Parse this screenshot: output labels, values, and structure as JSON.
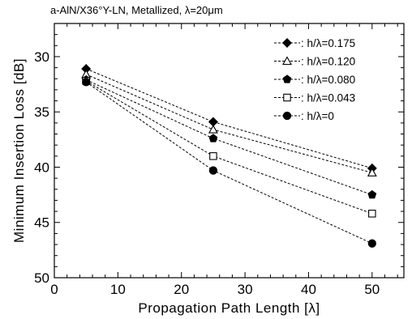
{
  "chart_data": {
    "type": "line",
    "title": "a-AlN/X36°Y-LN,  Metallized,  λ=20μm",
    "xlabel": "Propagation  Path  Length  [λ]",
    "ylabel": "Minimum  Insertion  Loss  [dB]",
    "xlim": [
      0,
      55
    ],
    "ylim": [
      27,
      50
    ],
    "y_inverted": true,
    "xticks": [
      0,
      10,
      20,
      30,
      40,
      50
    ],
    "yticks": [
      30,
      35,
      40,
      45,
      50
    ],
    "grid": false,
    "legend_position": "top-right",
    "line_style": "dashed",
    "line_color": "#000000",
    "series": [
      {
        "name": ":  h/λ=0.175",
        "marker": "diamond-filled",
        "x": [
          5,
          25,
          50
        ],
        "values": [
          31.1,
          35.9,
          40.1
        ]
      },
      {
        "name": ":  h/λ=0.120",
        "marker": "triangle-open",
        "x": [
          5,
          25,
          50
        ],
        "values": [
          31.6,
          36.6,
          40.5
        ]
      },
      {
        "name": ":  h/λ=0.080",
        "marker": "pentagon-filled",
        "x": [
          5,
          25,
          50
        ],
        "values": [
          32.1,
          37.4,
          42.5
        ]
      },
      {
        "name": ":  h/λ=0.043",
        "marker": "square-open",
        "x": [
          5,
          25,
          50
        ],
        "values": [
          32.2,
          39.0,
          44.2
        ]
      },
      {
        "name": ":  h/λ=0",
        "marker": "circle-filled",
        "x": [
          5,
          25,
          50
        ],
        "values": [
          32.3,
          40.3,
          46.9
        ]
      }
    ]
  }
}
